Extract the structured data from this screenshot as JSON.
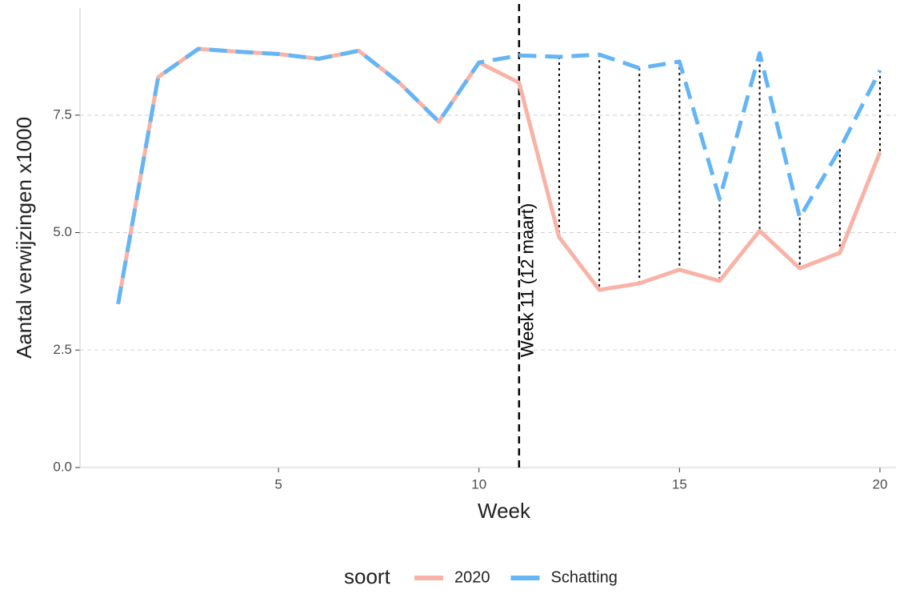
{
  "chart_data": {
    "type": "line",
    "x_label": "Week",
    "y_label": "Aantal verwijzingen x1000",
    "x": [
      1,
      2,
      3,
      4,
      5,
      6,
      7,
      8,
      9,
      10,
      11,
      12,
      13,
      14,
      15,
      16,
      17,
      18,
      19,
      20
    ],
    "series": [
      {
        "name": "2020",
        "color": "#f8b3a6",
        "dashed": false,
        "values": [
          3.48,
          8.31,
          8.91,
          8.85,
          8.8,
          8.7,
          8.87,
          8.2,
          7.36,
          8.62,
          8.19,
          4.9,
          3.78,
          3.92,
          4.21,
          3.97,
          5.04,
          4.24,
          4.57,
          6.71
        ]
      },
      {
        "name": "Schatting",
        "color": "#64b5f6",
        "dashed": true,
        "values": [
          3.48,
          8.31,
          8.91,
          8.85,
          8.8,
          8.7,
          8.87,
          8.2,
          7.36,
          8.62,
          8.77,
          8.74,
          8.79,
          8.5,
          8.64,
          5.72,
          8.82,
          5.32,
          6.78,
          8.45
        ]
      }
    ],
    "legend_title": "soort",
    "legend_position": "bottom",
    "vline": 11,
    "vline_label": "Week 11 (12 maart)",
    "xlim": [
      0.05,
      20.4
    ],
    "xticks": [
      5,
      10,
      15,
      20
    ],
    "ylim": [
      0,
      9.78
    ],
    "yticks": [
      {
        "value": 0,
        "label": "0.0"
      },
      2.5,
      {
        "value": 5,
        "label": "5.0"
      },
      7.5
    ],
    "grid": true
  }
}
